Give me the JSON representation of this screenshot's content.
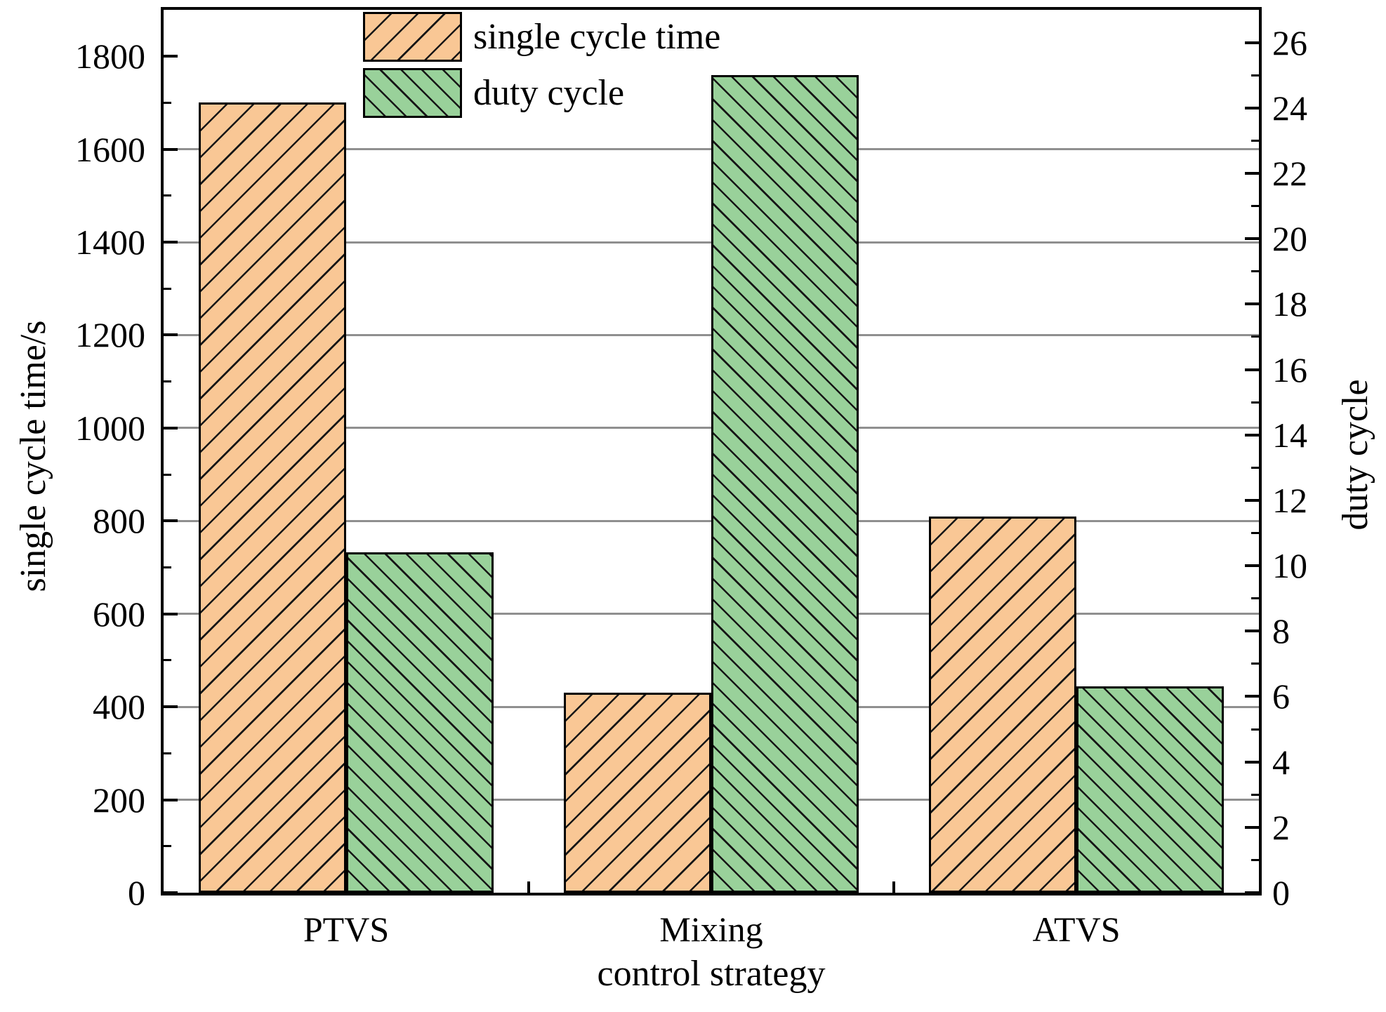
{
  "chart_data": {
    "type": "bar",
    "title": "",
    "categories": [
      "PTVS",
      "Mixing",
      "ATVS"
    ],
    "series": [
      {
        "name": "single cycle time",
        "axis": "left",
        "color": "#F9C795",
        "hatch": "/",
        "values": [
          1700,
          430,
          810
        ]
      },
      {
        "name": "duty cycle",
        "axis": "right",
        "color": "#99D19A",
        "hatch": "\\",
        "values": [
          10.4,
          25,
          6.3
        ]
      }
    ],
    "xlabel": "control strategy",
    "ylabel_left": "single cycle time/s",
    "ylabel_right": "duty cycle",
    "left_axis": {
      "min": 0,
      "max": 1900,
      "major_step": 200,
      "minor_step": 100,
      "tick_labels": [
        "0",
        "200",
        "400",
        "600",
        "800",
        "1000",
        "1200",
        "1400",
        "1600",
        "1800"
      ]
    },
    "right_axis": {
      "min": 0,
      "max": 27,
      "major_step": 2,
      "minor_step": 1,
      "tick_labels": [
        "0",
        "2",
        "4",
        "6",
        "8",
        "10",
        "12",
        "14",
        "16",
        "18",
        "20",
        "22",
        "24",
        "26"
      ]
    },
    "grid": {
      "horizontal": true,
      "at": "left-axis majors 200 to 1800",
      "color": "#8f8f8f"
    },
    "legend_position": "top-center inside plot",
    "frame_color": "#000000",
    "hatch_color": "#161616"
  }
}
